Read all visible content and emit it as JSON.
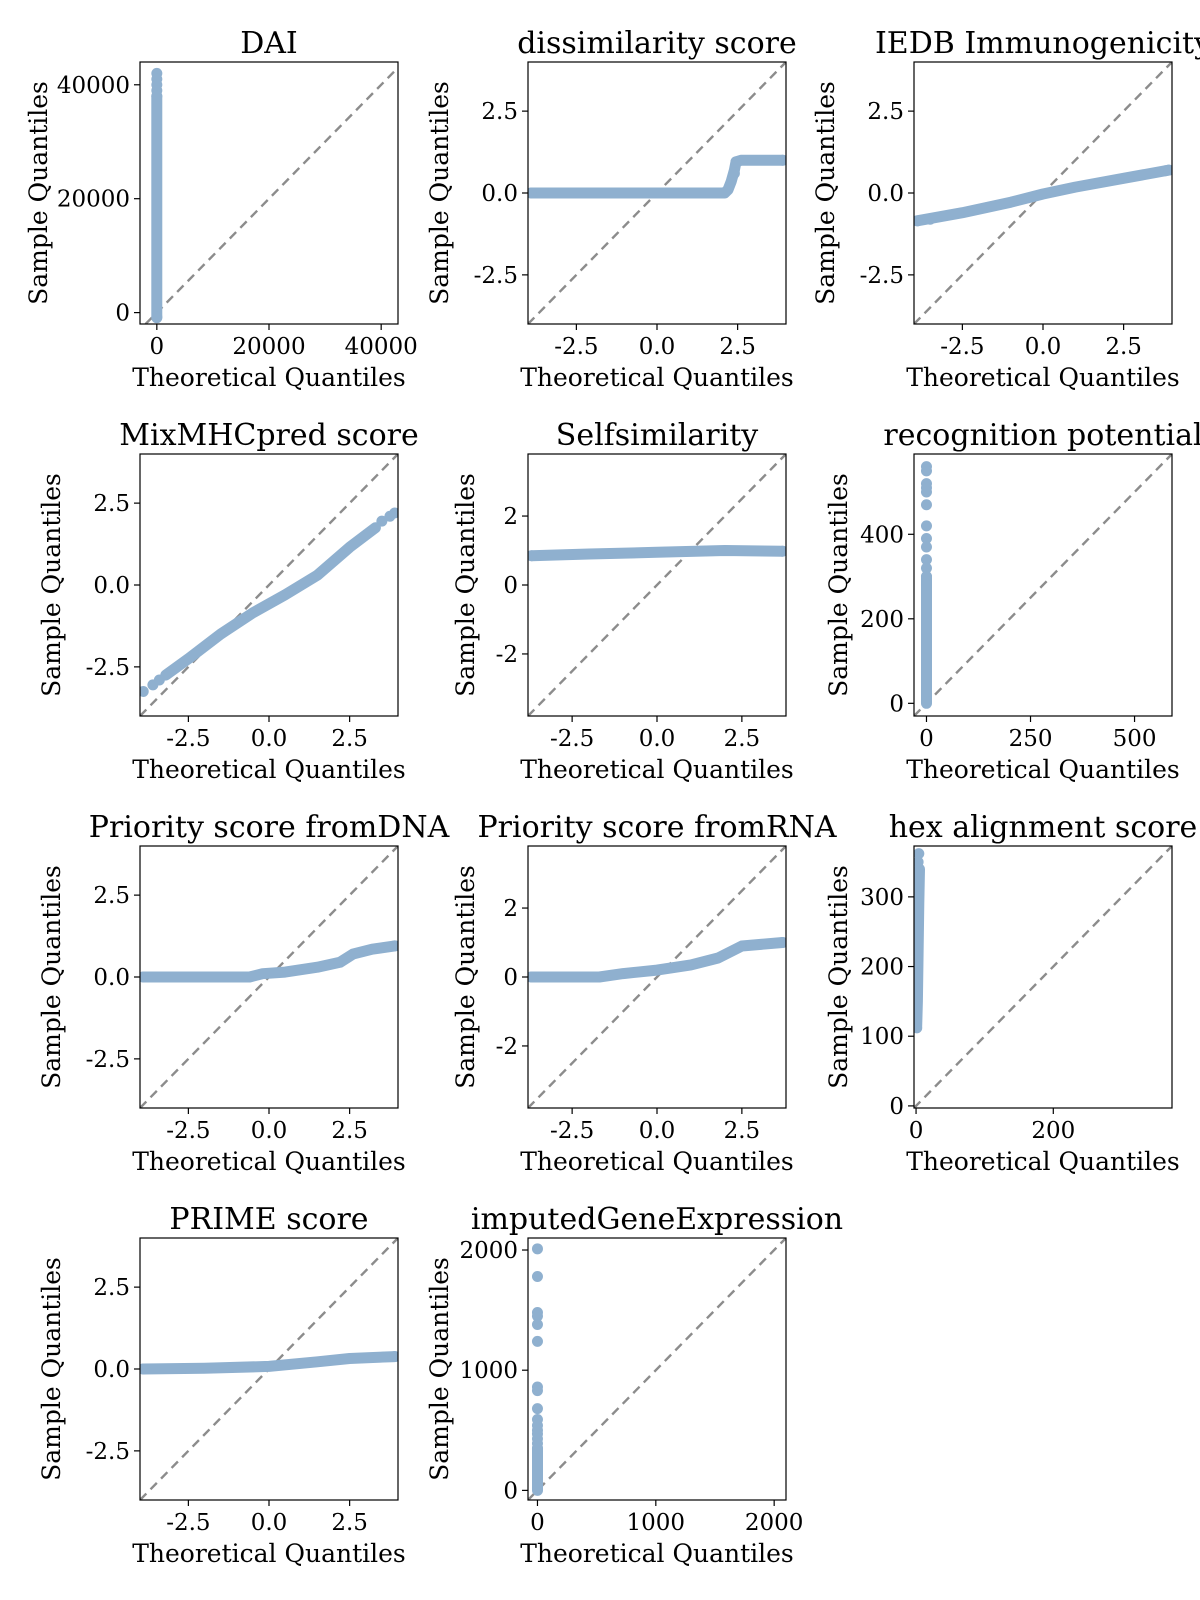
{
  "style": {
    "point_color": "#8fb0cf",
    "reference_line_color": "#8c8c8c"
  },
  "chart_data": [
    {
      "type": "scatter",
      "title": "DAI",
      "xlabel": "Theoretical Quantiles",
      "ylabel": "Sample Quantiles",
      "xlim": [
        -3000,
        43000
      ],
      "ylim": [
        -2000,
        44000
      ],
      "xticks": [
        {
          "v": 0,
          "label": "0"
        },
        {
          "v": 20000,
          "label": "20000"
        },
        {
          "v": 40000,
          "label": "40000"
        }
      ],
      "yticks": [
        {
          "v": 0,
          "label": "0"
        },
        {
          "v": 20000,
          "label": "20000"
        },
        {
          "v": 40000,
          "label": "40000"
        }
      ],
      "reference_line": "y=x",
      "curves": [
        [
          [
            0,
            -900
          ],
          [
            0,
            38000
          ]
        ]
      ],
      "points": [
        [
          0,
          42000
        ],
        [
          0,
          41000
        ],
        [
          0,
          40000
        ],
        [
          0,
          39000
        ],
        [
          0,
          38000
        ],
        [
          0,
          -800
        ]
      ]
    },
    {
      "type": "scatter",
      "title": "dissimilarity score",
      "xlabel": "Theoretical Quantiles",
      "ylabel": "Sample Quantiles",
      "xlim": [
        -4,
        4
      ],
      "ylim": [
        -4,
        4
      ],
      "xticks": [
        {
          "v": -2.5,
          "label": "-2.5"
        },
        {
          "v": 0,
          "label": "0.0"
        },
        {
          "v": 2.5,
          "label": "2.5"
        }
      ],
      "yticks": [
        {
          "v": -2.5,
          "label": "-2.5"
        },
        {
          "v": 0,
          "label": "0.0"
        },
        {
          "v": 2.5,
          "label": "2.5"
        }
      ],
      "reference_line": "y=x",
      "curves": [
        [
          [
            -3.9,
            0.0
          ],
          [
            2.1,
            0.0
          ],
          [
            2.2,
            0.1
          ],
          [
            2.3,
            0.35
          ],
          [
            2.4,
            0.7
          ],
          [
            2.45,
            0.95
          ],
          [
            2.6,
            1.0
          ],
          [
            3.9,
            1.0
          ]
        ]
      ],
      "points": [
        [
          -3.9,
          0.0
        ],
        [
          2.4,
          0.6
        ],
        [
          2.45,
          0.95
        ],
        [
          3.9,
          1.0
        ]
      ]
    },
    {
      "type": "scatter",
      "title": "IEDB Immunogenicity",
      "xlabel": "Theoretical Quantiles",
      "ylabel": "Sample Quantiles",
      "xlim": [
        -4,
        4
      ],
      "ylim": [
        -4,
        4
      ],
      "xticks": [
        {
          "v": -2.5,
          "label": "-2.5"
        },
        {
          "v": 0,
          "label": "0.0"
        },
        {
          "v": 2.5,
          "label": "2.5"
        }
      ],
      "yticks": [
        {
          "v": -2.5,
          "label": "-2.5"
        },
        {
          "v": 0,
          "label": "0.0"
        },
        {
          "v": 2.5,
          "label": "2.5"
        }
      ],
      "reference_line": "y=x",
      "curves": [
        [
          [
            -3.9,
            -0.85
          ],
          [
            -2.5,
            -0.6
          ],
          [
            -1.0,
            -0.28
          ],
          [
            0,
            -0.03
          ],
          [
            1.0,
            0.18
          ],
          [
            2.5,
            0.45
          ],
          [
            3.9,
            0.7
          ]
        ]
      ],
      "points": [
        [
          -3.9,
          -0.85
        ],
        [
          -3.5,
          -0.8
        ],
        [
          3.8,
          0.68
        ],
        [
          3.9,
          0.7
        ]
      ]
    },
    {
      "type": "scatter",
      "title": "MixMHCpred score",
      "xlabel": "Theoretical Quantiles",
      "ylabel": "Sample Quantiles",
      "xlim": [
        -4,
        4
      ],
      "ylim": [
        -4,
        4
      ],
      "xticks": [
        {
          "v": -2.5,
          "label": "-2.5"
        },
        {
          "v": 0,
          "label": "0.0"
        },
        {
          "v": 2.5,
          "label": "2.5"
        }
      ],
      "yticks": [
        {
          "v": -2.5,
          "label": "-2.5"
        },
        {
          "v": 0,
          "label": "0.0"
        },
        {
          "v": 2.5,
          "label": "2.5"
        }
      ],
      "reference_line": "y=x",
      "curves": [
        [
          [
            -3.2,
            -2.75
          ],
          [
            -2.5,
            -2.25
          ],
          [
            -1.5,
            -1.5
          ],
          [
            -0.5,
            -0.85
          ],
          [
            0.5,
            -0.3
          ],
          [
            1.5,
            0.3
          ],
          [
            2.5,
            1.15
          ],
          [
            3.3,
            1.75
          ]
        ]
      ],
      "points": [
        [
          -3.9,
          -3.25
        ],
        [
          -3.6,
          -3.05
        ],
        [
          -3.4,
          -2.9
        ],
        [
          3.5,
          1.95
        ],
        [
          3.75,
          2.1
        ],
        [
          3.9,
          2.2
        ]
      ]
    },
    {
      "type": "scatter",
      "title": "Selfsimilarity",
      "xlabel": "Theoretical Quantiles",
      "ylabel": "Sample Quantiles",
      "xlim": [
        -3.8,
        3.8
      ],
      "ylim": [
        -3.8,
        3.8
      ],
      "xticks": [
        {
          "v": -2.5,
          "label": "-2.5"
        },
        {
          "v": 0,
          "label": "0.0"
        },
        {
          "v": 2.5,
          "label": "2.5"
        }
      ],
      "yticks": [
        {
          "v": -2,
          "label": "-2"
        },
        {
          "v": 0,
          "label": "0"
        },
        {
          "v": 2,
          "label": "2"
        }
      ],
      "reference_line": "y=x",
      "curves": [
        [
          [
            -3.7,
            0.85
          ],
          [
            -2.0,
            0.9
          ],
          [
            0,
            0.95
          ],
          [
            2.0,
            1.0
          ],
          [
            3.7,
            0.98
          ]
        ]
      ],
      "points": [
        [
          -3.7,
          0.85
        ],
        [
          3.7,
          0.98
        ]
      ]
    },
    {
      "type": "scatter",
      "title": "recognition potential",
      "xlabel": "Theoretical Quantiles",
      "ylabel": "Sample Quantiles",
      "xlim": [
        -30,
        590
      ],
      "ylim": [
        -30,
        590
      ],
      "xticks": [
        {
          "v": 0,
          "label": "0"
        },
        {
          "v": 250,
          "label": "250"
        },
        {
          "v": 500,
          "label": "500"
        }
      ],
      "yticks": [
        {
          "v": 0,
          "label": "0"
        },
        {
          "v": 200,
          "label": "200"
        },
        {
          "v": 400,
          "label": "400"
        }
      ],
      "reference_line": "y=x",
      "curves": [
        [
          [
            0,
            0
          ],
          [
            0,
            300
          ]
        ]
      ],
      "points": [
        [
          0,
          560
        ],
        [
          0,
          550
        ],
        [
          0,
          520
        ],
        [
          0,
          510
        ],
        [
          0,
          500
        ],
        [
          0,
          470
        ],
        [
          0,
          420
        ],
        [
          0,
          390
        ],
        [
          0,
          370
        ],
        [
          0,
          340
        ],
        [
          0,
          320
        ],
        [
          0,
          300
        ],
        [
          0,
          280
        ],
        [
          0,
          5
        ]
      ]
    },
    {
      "type": "scatter",
      "title": "Priority score fromDNA",
      "xlabel": "Theoretical Quantiles",
      "ylabel": "Sample Quantiles",
      "xlim": [
        -4,
        4
      ],
      "ylim": [
        -4,
        4
      ],
      "xticks": [
        {
          "v": -2.5,
          "label": "-2.5"
        },
        {
          "v": 0,
          "label": "0.0"
        },
        {
          "v": 2.5,
          "label": "2.5"
        }
      ],
      "yticks": [
        {
          "v": -2.5,
          "label": "-2.5"
        },
        {
          "v": 0,
          "label": "0.0"
        },
        {
          "v": 2.5,
          "label": "2.5"
        }
      ],
      "reference_line": "y=x",
      "curves": [
        [
          [
            -3.9,
            0.0
          ],
          [
            -0.6,
            0.0
          ],
          [
            -0.2,
            0.1
          ],
          [
            0.5,
            0.15
          ],
          [
            1.5,
            0.3
          ],
          [
            2.2,
            0.45
          ],
          [
            2.6,
            0.7
          ],
          [
            3.2,
            0.85
          ],
          [
            3.9,
            0.95
          ]
        ]
      ],
      "points": [
        [
          -3.9,
          0.0
        ],
        [
          3.9,
          0.95
        ]
      ]
    },
    {
      "type": "scatter",
      "title": "Priority score fromRNA",
      "xlabel": "Theoretical Quantiles",
      "ylabel": "Sample Quantiles",
      "xlim": [
        -3.8,
        3.8
      ],
      "ylim": [
        -3.8,
        3.8
      ],
      "xticks": [
        {
          "v": -2.5,
          "label": "-2.5"
        },
        {
          "v": 0,
          "label": "0.0"
        },
        {
          "v": 2.5,
          "label": "2.5"
        }
      ],
      "yticks": [
        {
          "v": -2,
          "label": "-2"
        },
        {
          "v": 0,
          "label": "0"
        },
        {
          "v": 2,
          "label": "2"
        }
      ],
      "reference_line": "y=x",
      "curves": [
        [
          [
            -3.7,
            0.0
          ],
          [
            -1.7,
            0.0
          ],
          [
            -1.0,
            0.1
          ],
          [
            0,
            0.2
          ],
          [
            1.0,
            0.35
          ],
          [
            1.8,
            0.55
          ],
          [
            2.5,
            0.9
          ],
          [
            3.7,
            1.0
          ]
        ]
      ],
      "points": [
        [
          -3.7,
          0.0
        ],
        [
          3.7,
          1.0
        ]
      ]
    },
    {
      "type": "scatter",
      "title": "hex alignment score",
      "xlabel": "Theoretical Quantiles",
      "ylabel": "Sample Quantiles",
      "xlim": [
        -3,
        373
      ],
      "ylim": [
        -3,
        373
      ],
      "xticks": [
        {
          "v": 0,
          "label": "0"
        },
        {
          "v": 200,
          "label": "200"
        }
      ],
      "yticks": [
        {
          "v": 0,
          "label": "0"
        },
        {
          "v": 100,
          "label": "100"
        },
        {
          "v": 200,
          "label": "200"
        },
        {
          "v": 300,
          "label": "300"
        }
      ],
      "reference_line": "y=x",
      "curves": [
        [
          [
            1,
            115
          ],
          [
            2,
            150
          ],
          [
            3,
            220
          ],
          [
            4,
            290
          ],
          [
            5,
            340
          ]
        ]
      ],
      "points": [
        [
          1,
          112
        ],
        [
          3,
          350
        ],
        [
          4,
          362
        ]
      ]
    },
    {
      "type": "scatter",
      "title": "PRIME score",
      "xlabel": "Theoretical Quantiles",
      "ylabel": "Sample Quantiles",
      "xlim": [
        -4,
        4
      ],
      "ylim": [
        -4,
        4
      ],
      "xticks": [
        {
          "v": -2.5,
          "label": "-2.5"
        },
        {
          "v": 0,
          "label": "0.0"
        },
        {
          "v": 2.5,
          "label": "2.5"
        }
      ],
      "yticks": [
        {
          "v": -2.5,
          "label": "-2.5"
        },
        {
          "v": 0,
          "label": "0.0"
        },
        {
          "v": 2.5,
          "label": "2.5"
        }
      ],
      "reference_line": "y=x",
      "curves": [
        [
          [
            -3.9,
            0.0
          ],
          [
            -2.0,
            0.02
          ],
          [
            0,
            0.08
          ],
          [
            1.5,
            0.22
          ],
          [
            2.5,
            0.32
          ],
          [
            3.9,
            0.38
          ]
        ]
      ],
      "points": [
        [
          -3.9,
          0.0
        ],
        [
          3.9,
          0.38
        ]
      ]
    },
    {
      "type": "scatter",
      "title": "imputedGeneExpression",
      "xlabel": "Theoretical Quantiles",
      "ylabel": "Sample Quantiles",
      "xlim": [
        -80,
        2100
      ],
      "ylim": [
        -80,
        2100
      ],
      "xticks": [
        {
          "v": 0,
          "label": "0"
        },
        {
          "v": 1000,
          "label": "1000"
        },
        {
          "v": 2000,
          "label": "2000"
        }
      ],
      "yticks": [
        {
          "v": 0,
          "label": "0"
        },
        {
          "v": 1000,
          "label": "1000"
        },
        {
          "v": 2000,
          "label": "2000"
        }
      ],
      "reference_line": "y=x",
      "curves": [
        [
          [
            0,
            0
          ],
          [
            0,
            350
          ]
        ]
      ],
      "points": [
        [
          0,
          2010
        ],
        [
          0,
          1780
        ],
        [
          0,
          1480
        ],
        [
          0,
          1450
        ],
        [
          0,
          1380
        ],
        [
          0,
          1240
        ],
        [
          0,
          860
        ],
        [
          0,
          830
        ],
        [
          0,
          680
        ],
        [
          0,
          590
        ],
        [
          0,
          540
        ],
        [
          0,
          500
        ],
        [
          0,
          470
        ],
        [
          0,
          430
        ],
        [
          0,
          390
        ],
        [
          0,
          350
        ],
        [
          0,
          20
        ]
      ]
    }
  ]
}
